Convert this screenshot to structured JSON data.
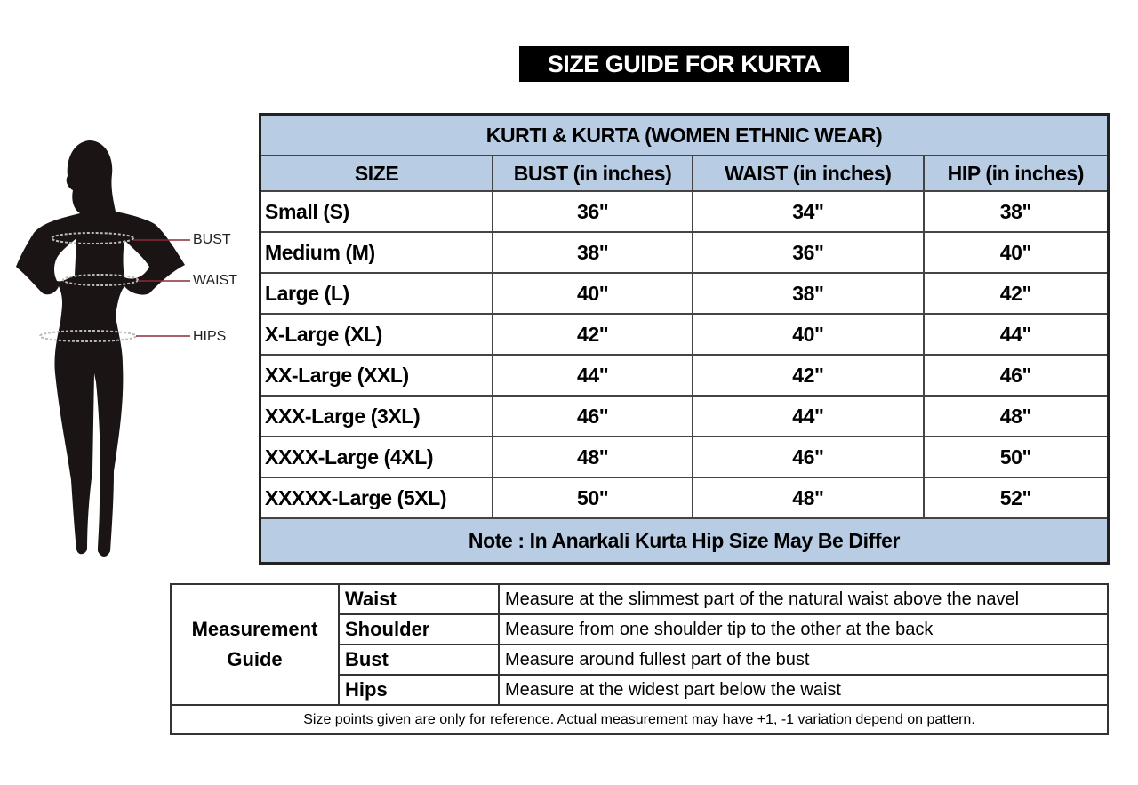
{
  "title": "SIZE GUIDE FOR KURTA",
  "figure": {
    "labels": [
      "BUST",
      "WAIST",
      "HIPS"
    ],
    "line_color": "#8b2b3a"
  },
  "size_table": {
    "caption": "KURTI & KURTA (WOMEN ETHNIC WEAR)",
    "header_color": "#b8cce4",
    "columns": [
      "SIZE",
      "BUST (in inches)",
      "WAIST (in inches)",
      "HIP (in inches)"
    ],
    "rows": [
      [
        "Small (S)",
        "36\"",
        "34\"",
        "38\""
      ],
      [
        "Medium (M)",
        "38\"",
        "36\"",
        "40\""
      ],
      [
        "Large (L)",
        "40\"",
        "38\"",
        "42\""
      ],
      [
        "X-Large (XL)",
        "42\"",
        "40\"",
        "44\""
      ],
      [
        "XX-Large (XXL)",
        "44\"",
        "42\"",
        "46\""
      ],
      [
        "XXX-Large (3XL)",
        "46\"",
        "44\"",
        "48\""
      ],
      [
        "XXXX-Large (4XL)",
        "48\"",
        "46\"",
        "50\""
      ],
      [
        "XXXXX-Large (5XL)",
        "50\"",
        "48\"",
        "52\""
      ]
    ],
    "note": "Note : In Anarkali Kurta Hip Size May Be Differ"
  },
  "guide": {
    "label": "Measurement Guide",
    "items": [
      {
        "part": "Waist",
        "text": "Measure at the slimmest part of the natural waist above the navel"
      },
      {
        "part": "Shoulder",
        "text": "Measure from one shoulder tip to the other at the back"
      },
      {
        "part": "Bust",
        "text": "Measure around fullest part of the bust"
      },
      {
        "part": "Hips",
        "text": "Measure at the widest part below the waist"
      }
    ],
    "footnote": "Size points given are only for reference. Actual measurement may have +1, -1 variation depend on pattern."
  }
}
